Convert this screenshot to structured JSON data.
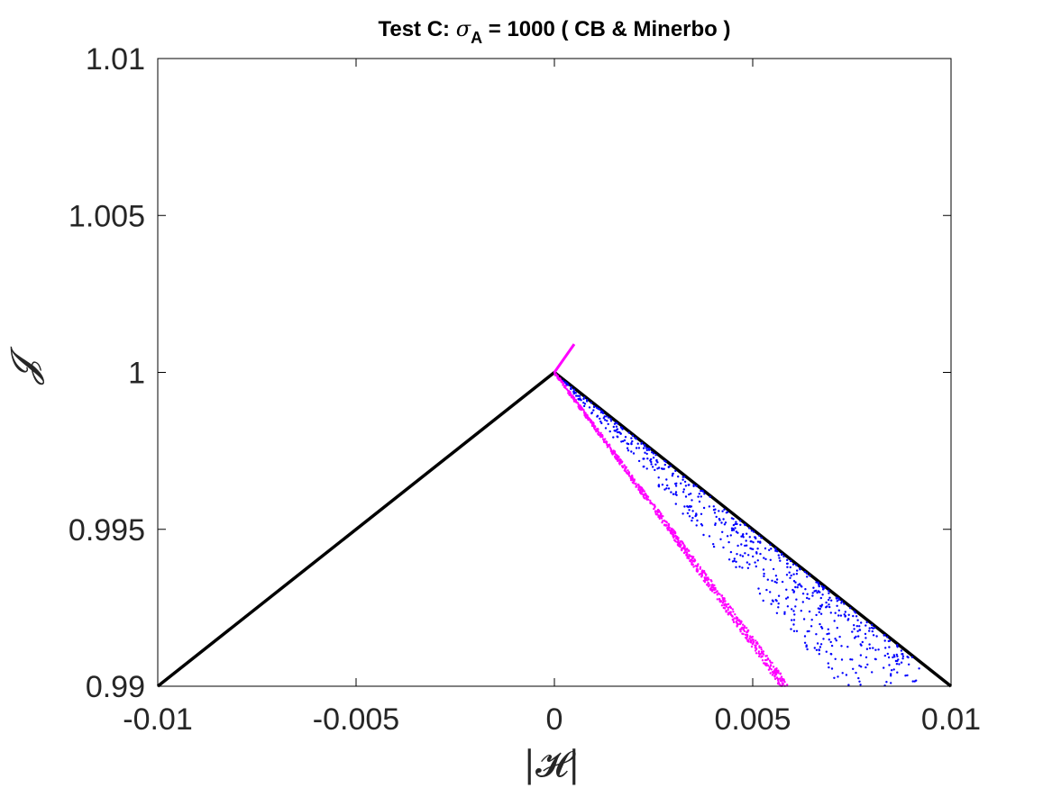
{
  "chart_data": {
    "type": "scatter",
    "title_prefix": "Test C: ",
    "title_symbol": "σ",
    "title_subscript": "A",
    "title_suffix": " = 1000 ( CB & Minerbo )",
    "xlabel": "|𝓗|",
    "ylabel": "𝓙",
    "xlim": [
      -0.01,
      0.01
    ],
    "ylim": [
      0.99,
      1.01
    ],
    "xticks": [
      -0.01,
      -0.005,
      0,
      0.005,
      0.01
    ],
    "xtick_labels": [
      "-0.01",
      "-0.005",
      "0",
      "0.005",
      "0.01"
    ],
    "yticks": [
      0.99,
      0.995,
      1,
      1.005,
      1.01
    ],
    "ytick_labels": [
      "0.99",
      "0.995",
      "1",
      "1.005",
      "1.01"
    ],
    "grid": false,
    "series": [
      {
        "kind": "line",
        "color": "#000000",
        "x": [
          -0.01,
          0,
          0.01
        ],
        "y": [
          0.99,
          1.0,
          0.99
        ]
      },
      {
        "kind": "scatter",
        "color": "#0000ff",
        "approx_count": 700,
        "x_range": [
          0,
          0.0092
        ],
        "y_top_relation": "y = 1 - |x|",
        "y_bottom_slope": -1.38,
        "y_range": [
          0.9903,
          1.0
        ]
      },
      {
        "kind": "scatter",
        "color": "#ff00ff",
        "approx_count": 800,
        "x_range": [
          0,
          0.0059
        ],
        "slope": -1.72,
        "y_range": [
          0.9898,
          1.0
        ]
      },
      {
        "kind": "line",
        "color": "#ff00ff",
        "x": [
          0,
          0.0005
        ],
        "y": [
          1.0,
          1.0009
        ]
      }
    ]
  }
}
